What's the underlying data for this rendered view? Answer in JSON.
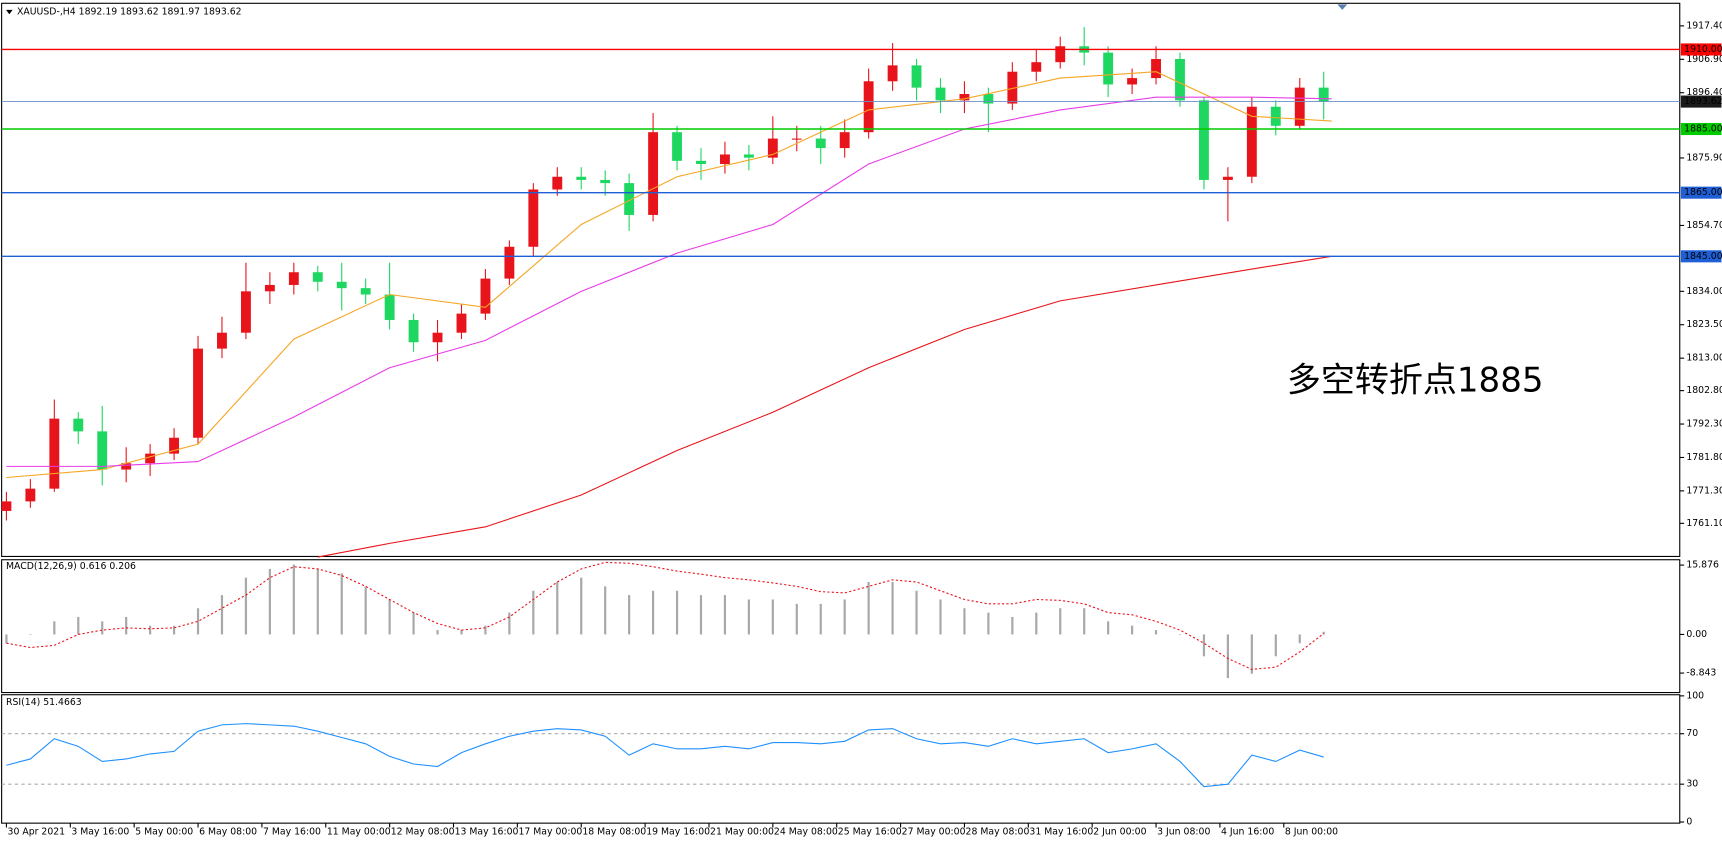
{
  "chart_data": [
    {
      "type": "candlestick",
      "title": "XAUUSD-,H4  1892.19 1893.62 1891.97 1893.62",
      "x": [
        0,
        3,
        6,
        9,
        12,
        15,
        18,
        21,
        24,
        27,
        30,
        33,
        36,
        39,
        42,
        45,
        48,
        51,
        54,
        57,
        60,
        63,
        66,
        69,
        72,
        75,
        78,
        81,
        84,
        87,
        90,
        93,
        96,
        99,
        102,
        105,
        108,
        111,
        114,
        117,
        120,
        123,
        126,
        129,
        132,
        135,
        138,
        141,
        144,
        147,
        150,
        153,
        156,
        159,
        162,
        165
      ],
      "open": [
        1765,
        1768,
        1772,
        1794,
        1790,
        1778,
        1780,
        1783,
        1788,
        1816,
        1821,
        1834,
        1836,
        1840,
        1837,
        1835,
        1833,
        1825,
        1818,
        1821,
        1827,
        1838,
        1848,
        1866,
        1870,
        1869,
        1868,
        1858,
        1884,
        1875,
        1874,
        1877,
        1876,
        1882,
        1882,
        1879,
        1884,
        1900,
        1905,
        1898,
        1894,
        1896,
        1893,
        1903,
        1906,
        1911,
        1909,
        1899,
        1901,
        1907,
        1894,
        1869,
        1870,
        1892,
        1886,
        1898
      ],
      "high": [
        1771,
        1775,
        1800,
        1796,
        1798,
        1785,
        1786,
        1791,
        1820,
        1826,
        1843,
        1840,
        1843,
        1842,
        1843,
        1838,
        1843,
        1827,
        1825,
        1830,
        1841,
        1850,
        1868,
        1873,
        1873,
        1872,
        1871,
        1890,
        1886,
        1879,
        1881,
        1880,
        1889,
        1886,
        1886,
        1888,
        1904,
        1912,
        1907,
        1901,
        1900,
        1898,
        1906,
        1910,
        1914,
        1917,
        1911,
        1904,
        1911,
        1909,
        1895,
        1873,
        1895,
        1894,
        1901,
        1903
      ],
      "low": [
        1762,
        1766,
        1771,
        1786,
        1773,
        1774,
        1776,
        1781,
        1786,
        1813,
        1819,
        1830,
        1833,
        1834,
        1828,
        1830,
        1822,
        1815,
        1812,
        1819,
        1825,
        1836,
        1845,
        1864,
        1866,
        1864,
        1853,
        1856,
        1872,
        1869,
        1871,
        1872,
        1874,
        1878,
        1874,
        1876,
        1882,
        1897,
        1894,
        1890,
        1890,
        1884,
        1891,
        1900,
        1904,
        1905,
        1895,
        1896,
        1899,
        1892,
        1866,
        1856,
        1868,
        1883,
        1885,
        1888
      ],
      "close": [
        1768,
        1772,
        1794,
        1790,
        1778,
        1780,
        1783,
        1788,
        1816,
        1821,
        1834,
        1836,
        1840,
        1837,
        1835,
        1833,
        1825,
        1818,
        1821,
        1827,
        1838,
        1848,
        1866,
        1870,
        1869,
        1868,
        1858,
        1884,
        1875,
        1874,
        1877,
        1876,
        1882,
        1882,
        1879,
        1884,
        1900,
        1905,
        1898,
        1894,
        1896,
        1893,
        1903,
        1906,
        1911,
        1909,
        1899,
        1901,
        1907,
        1894,
        1869,
        1870,
        1892,
        1886,
        1898,
        1893.62
      ],
      "up_color": "#e8141b",
      "down_color": "#1ed760",
      "lines": [
        {
          "color": "#f5a623",
          "x": [
            0,
            12,
            24,
            36,
            48,
            60,
            72,
            84,
            96,
            108,
            120,
            132,
            144,
            156,
            166
          ],
          "values": [
            1775.5,
            1778,
            1786,
            1819,
            1833,
            1829,
            1855,
            1870,
            1877,
            1891,
            1894.5,
            1901,
            1903,
            1889,
            1887.5
          ]
        },
        {
          "color": "#e83ce8",
          "x": [
            0,
            12,
            24,
            36,
            48,
            60,
            72,
            84,
            96,
            108,
            120,
            132,
            144,
            156,
            166
          ],
          "values": [
            1779,
            1779,
            1780.5,
            1794.5,
            1810,
            1818.6,
            1834,
            1846,
            1855,
            1874,
            1885,
            1891,
            1895,
            1895,
            1894.5
          ]
        },
        {
          "color": "#e8141b",
          "x": [
            39,
            48,
            60,
            72,
            84,
            96,
            108,
            120,
            132,
            144,
            156,
            166
          ],
          "values": [
            1750.5,
            1754.8,
            1760,
            1770,
            1784,
            1796,
            1810,
            1822,
            1831,
            1836,
            1841,
            1845
          ]
        }
      ],
      "levels": [
        {
          "value": 1910,
          "label": "1910.00",
          "color": "#ff0000",
          "box_color": "#ff0000"
        },
        {
          "value": 1893.62,
          "color": "#6a8fc8",
          "box_color": "#1a1a1a"
        },
        {
          "value": 1885,
          "label": "1885.00",
          "color": "#00cc00",
          "box_color": "#00cc00"
        },
        {
          "value": 1865,
          "label": "1865.00",
          "color": "#1f5fd6",
          "box_color": "#1f5fd6"
        },
        {
          "value": 1845,
          "label": "1845.00",
          "color": "#1f5fd6",
          "box_color": "#1f5fd6"
        }
      ],
      "annotation": "多空转折点1885",
      "annotation_color": "#ff1a1a",
      "xlim": [
        -0.6,
        209.6
      ],
      "ylim": [
        1750.7,
        1924.5
      ],
      "yticks": [
        {
          "value": 1917.4,
          "label": "1917.40"
        },
        {
          "value": 1906.9,
          "label": "1906.90"
        },
        {
          "value": 1896.4,
          "label": "1896.40"
        },
        {
          "value": 1875.9,
          "label": "1875.90"
        },
        {
          "value": 1854.7,
          "label": "1854.70"
        },
        {
          "value": 1834,
          "label": "1834.00"
        },
        {
          "value": 1823.5,
          "label": "1823.50"
        },
        {
          "value": 1813,
          "label": "1813.00"
        },
        {
          "value": 1802.8,
          "label": "1802.80"
        },
        {
          "value": 1792.3,
          "label": "1792.30"
        },
        {
          "value": 1781.8,
          "label": "1781.80"
        },
        {
          "value": 1771.3,
          "label": "1771.30"
        },
        {
          "value": 1761.1,
          "label": "1761.10"
        }
      ]
    },
    {
      "type": "macd",
      "title": "MACD(12,26,9) 0.616 0.206",
      "x": [
        0,
        3,
        6,
        9,
        12,
        15,
        18,
        21,
        24,
        27,
        30,
        33,
        36,
        39,
        42,
        45,
        48,
        51,
        54,
        57,
        60,
        63,
        66,
        69,
        72,
        75,
        78,
        81,
        84,
        87,
        90,
        93,
        96,
        99,
        102,
        105,
        108,
        111,
        114,
        117,
        120,
        123,
        126,
        129,
        132,
        135,
        138,
        141,
        144,
        147,
        150,
        153,
        156,
        159,
        162,
        165
      ],
      "series": [
        {
          "type": "bar",
          "color": "#a8a8a8",
          "values": [
            -2,
            0,
            3,
            4,
            3,
            4,
            2,
            2,
            6,
            9,
            13,
            15,
            16,
            15,
            14,
            11,
            8,
            5,
            1,
            1,
            2,
            5,
            10,
            12,
            13,
            11,
            9,
            10,
            10,
            9,
            9,
            8,
            8,
            7,
            7,
            8,
            12,
            12,
            10,
            8,
            6,
            5,
            4,
            5,
            6,
            6,
            3,
            2,
            1,
            0,
            -5,
            -10,
            -9,
            -5,
            -2,
            0.616
          ]
        },
        {
          "type": "line",
          "color": "#e8141b",
          "dashed": true,
          "values": [
            -2,
            -3,
            -2.5,
            0,
            1,
            1.5,
            1.3,
            1.5,
            3,
            6,
            9,
            13,
            15.5,
            15,
            13.5,
            11,
            8,
            5,
            2.5,
            1,
            1.5,
            4,
            8,
            12,
            15,
            16.5,
            16.3,
            15.5,
            14.5,
            13.8,
            13,
            12.5,
            11.8,
            11,
            9.8,
            9.5,
            11,
            12.5,
            12,
            10,
            8,
            7,
            7,
            8,
            7.8,
            7,
            5,
            4.5,
            3,
            1,
            -2,
            -5.5,
            -8,
            -7.5,
            -4,
            0.206
          ]
        }
      ],
      "xlim": [
        -0.6,
        209.6
      ],
      "ylim": [
        -13.3,
        17.1
      ],
      "yticks": [
        15.876,
        {
          "value": 0,
          "label": "0.00"
        },
        -8.843
      ]
    },
    {
      "type": "line",
      "title": "RSI(14) 51.4663",
      "x": [
        0,
        3,
        6,
        9,
        12,
        15,
        18,
        21,
        24,
        27,
        30,
        33,
        36,
        39,
        42,
        45,
        48,
        51,
        54,
        57,
        60,
        63,
        66,
        69,
        72,
        75,
        78,
        81,
        84,
        87,
        90,
        93,
        96,
        99,
        102,
        105,
        108,
        111,
        114,
        117,
        120,
        123,
        126,
        129,
        132,
        135,
        138,
        141,
        144,
        147,
        150,
        153,
        156,
        159,
        162,
        165
      ],
      "series": [
        {
          "color": "#1e90ff",
          "values": [
            45,
            50,
            66,
            60,
            48,
            50,
            54,
            56,
            72,
            77,
            78,
            77,
            76,
            72,
            67,
            62,
            52,
            46,
            44,
            55,
            62,
            68,
            72,
            74,
            73,
            68,
            53,
            62,
            58,
            58,
            60,
            58,
            63,
            63,
            62,
            64,
            73,
            74,
            66,
            62,
            63,
            60,
            66,
            62,
            64,
            66,
            55,
            58,
            62,
            48,
            28,
            30,
            53,
            48,
            57,
            51.4663
          ]
        }
      ],
      "reference_lines": [
        70,
        30
      ],
      "xlim": [
        -0.6,
        209.6
      ],
      "ylim": [
        -0.9,
        100.9
      ],
      "yticks": [
        100,
        70,
        30,
        0
      ],
      "xticks": [
        {
          "value": 0,
          "label": "30 Apr 2021"
        },
        {
          "value": 8,
          "label": "3 May 16:00"
        },
        {
          "value": 16,
          "label": "5 May 00:00"
        },
        {
          "value": 24,
          "label": "6 May 08:00"
        },
        {
          "value": 32,
          "label": "7 May 16:00"
        },
        {
          "value": 40,
          "label": "11 May 00:00"
        },
        {
          "value": 48,
          "label": "12 May 08:00"
        },
        {
          "value": 56,
          "label": "13 May 16:00"
        },
        {
          "value": 64,
          "label": "17 May 00:00"
        },
        {
          "value": 72,
          "label": "18 May 08:00"
        },
        {
          "value": 80,
          "label": "19 May 16:00"
        },
        {
          "value": 88,
          "label": "21 May 00:00"
        },
        {
          "value": 96,
          "label": "24 May 08:00"
        },
        {
          "value": 104,
          "label": "25 May 16:00"
        },
        {
          "value": 112,
          "label": "27 May 00:00"
        },
        {
          "value": 120,
          "label": "28 May 08:00"
        },
        {
          "value": 128,
          "label": "31 May 16:00"
        },
        {
          "value": 136,
          "label": "2 Jun 00:00"
        },
        {
          "value": 144,
          "label": "3 Jun 08:00"
        },
        {
          "value": 152,
          "label": "4 Jun 16:00"
        },
        {
          "value": 160,
          "label": "8 Jun 00:00"
        }
      ]
    }
  ]
}
